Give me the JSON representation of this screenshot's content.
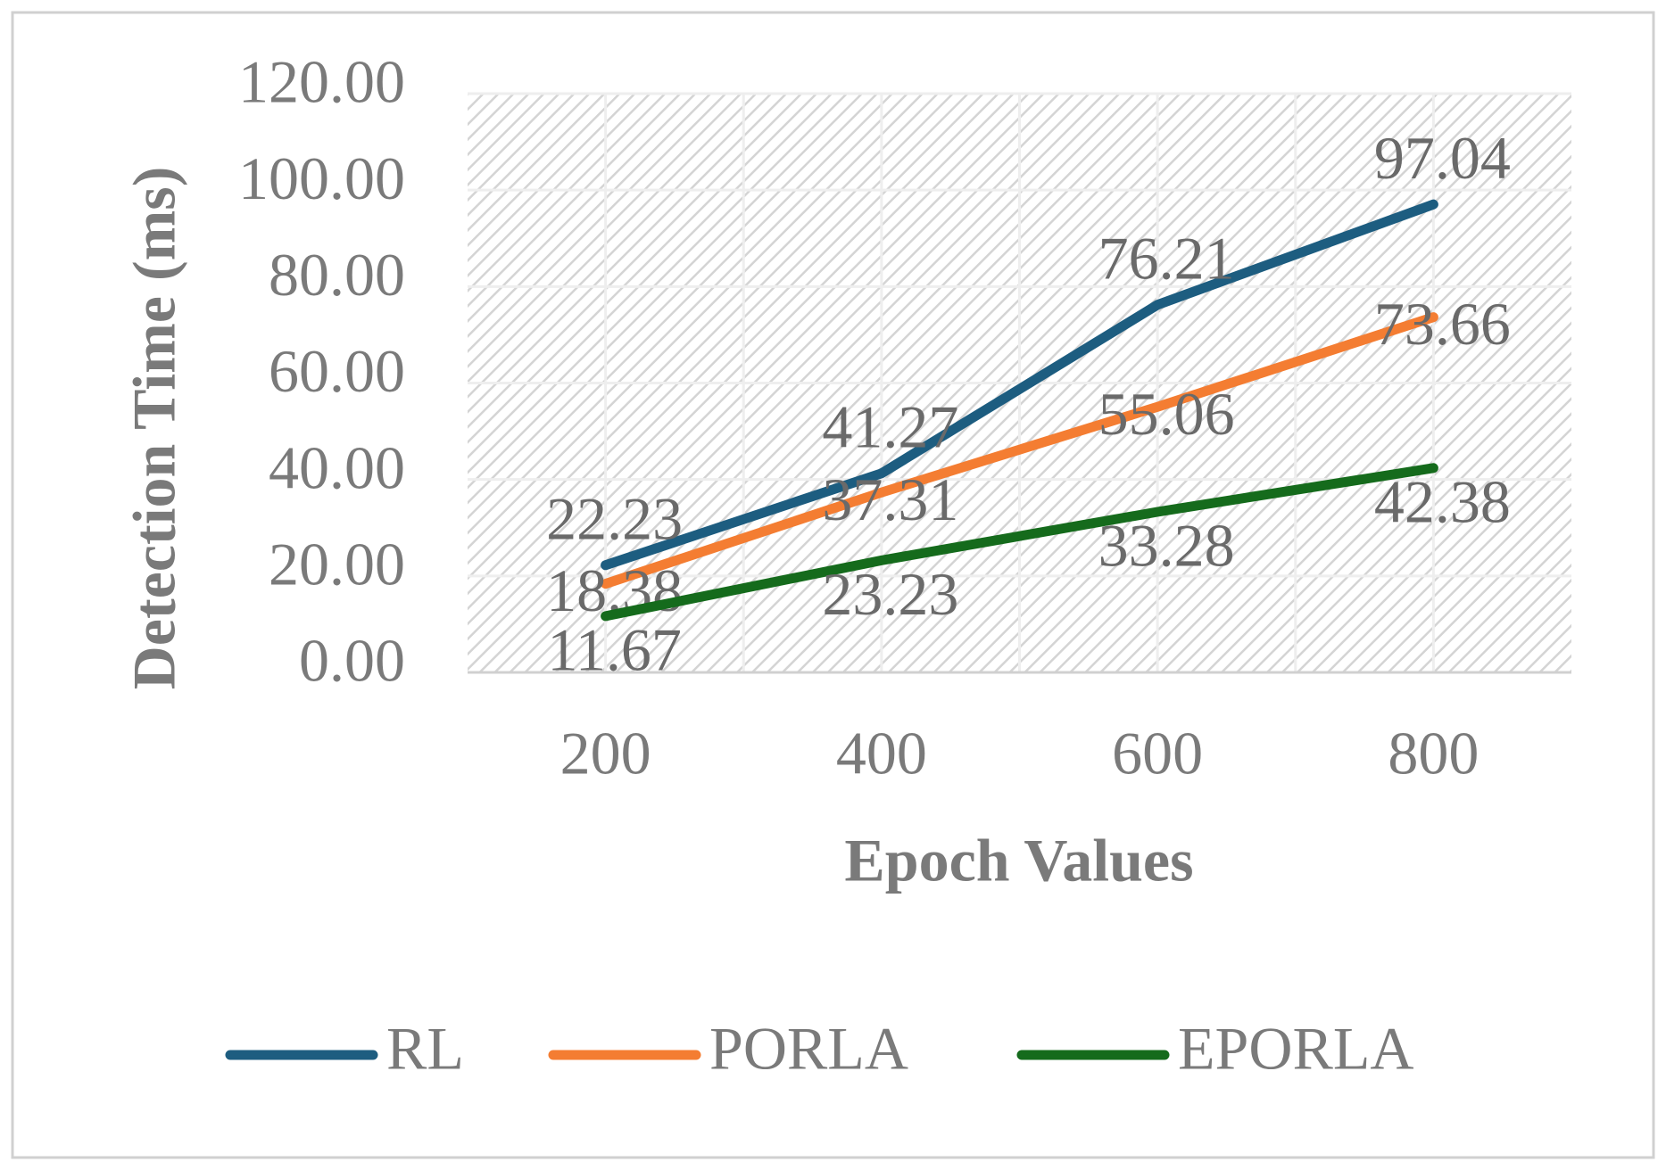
{
  "chart_data": {
    "type": "line",
    "y_label": "Detection Time (ms)",
    "x_label": "Epoch Values",
    "categories": [
      "200",
      "400",
      "600",
      "800"
    ],
    "series": [
      {
        "name": "RL",
        "color": "#1d5d80",
        "values": [
          22.23,
          41.27,
          76.21,
          97.04
        ]
      },
      {
        "name": "PORLA",
        "color": "#f47d32",
        "values": [
          18.38,
          37.31,
          55.06,
          73.66
        ]
      },
      {
        "name": "EPORLA",
        "color": "#156b1c",
        "values": [
          11.67,
          23.23,
          33.28,
          42.38
        ]
      }
    ],
    "ylim": [
      0,
      120
    ],
    "yticks": [
      {
        "value": 0,
        "label": "0.00"
      },
      {
        "value": 20,
        "label": "20.00"
      },
      {
        "value": 40,
        "label": "40.00"
      },
      {
        "value": 60,
        "label": "60.00"
      },
      {
        "value": 80,
        "label": "80.00"
      },
      {
        "value": 100,
        "label": "100.00"
      },
      {
        "value": 120,
        "label": "120.00"
      }
    ],
    "grid": true,
    "legend": "bottom"
  }
}
